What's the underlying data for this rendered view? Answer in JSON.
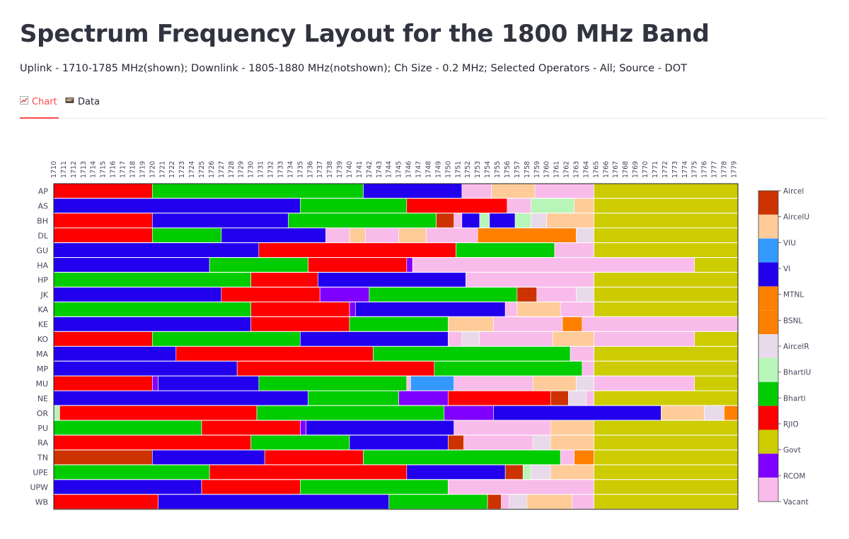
{
  "page": {
    "title": "Spectrum Frequency Layout for the 1800 MHz Band",
    "subtitle": "Uplink - 1710-1785 MHz(shown); Downlink - 1805-1880 MHz(notshown); Ch Size - 0.2 MHz; Selected Operators - All; Source - DOT"
  },
  "tabs": [
    {
      "label": "Chart",
      "icon": "chart-icon",
      "active": true
    },
    {
      "label": "Data",
      "icon": "card-index-icon",
      "active": false
    }
  ],
  "chart_data": {
    "type": "heatmap",
    "title": "",
    "x_axis": {
      "start": 1710,
      "end": 1779,
      "step": 1,
      "cell_mhz": 0.2,
      "range_mhz": [
        1710,
        1779.4
      ],
      "position": "top"
    },
    "y_labels": [
      "AP",
      "AS",
      "BH",
      "DL",
      "GU",
      "HA",
      "HP",
      "JK",
      "KA",
      "KE",
      "KO",
      "MA",
      "MP",
      "MU",
      "NE",
      "OR",
      "PU",
      "RA",
      "TN",
      "UPE",
      "UPW",
      "WB"
    ],
    "legend": {
      "placement": "right",
      "entries": [
        "Aircel",
        "AircelU",
        "VIU",
        "VI",
        "MTNL",
        "BSNL",
        "AircelR",
        "BhartiU",
        "Bharti",
        "RJIO",
        "Govt",
        "RCOM",
        "Vacant"
      ],
      "colors": {
        "Aircel": "#cc3300",
        "AircelU": "#ffcc99",
        "VIU": "#3399ff",
        "VI": "#2200ee",
        "MTNL": "#ff8000",
        "BSNL": "#ff8000",
        "AircelR": "#e8daea",
        "BhartiU": "#b8f5b8",
        "Bharti": "#00cc00",
        "RJIO": "#ff0000",
        "Govt": "#cccc00",
        "RCOM": "#8000ff",
        "Vacant": "#f9bbea"
      }
    },
    "rows": [
      {
        "label": "AP",
        "segments": [
          [
            "RJIO",
            1710,
            1720
          ],
          [
            "Bharti",
            1720,
            1741.4
          ],
          [
            "VI",
            1741.4,
            1751.4
          ],
          [
            "Vacant",
            1751.4,
            1754.4
          ],
          [
            "AircelU",
            1754.4,
            1758.8
          ],
          [
            "Vacant",
            1758.8,
            1764.8
          ],
          [
            "Govt",
            1764.8,
            1779.4
          ]
        ]
      },
      {
        "label": "AS",
        "segments": [
          [
            "VI",
            1710,
            1735
          ],
          [
            "Bharti",
            1735,
            1745.8
          ],
          [
            "RJIO",
            1745.8,
            1756
          ],
          [
            "Vacant",
            1756,
            1758.4
          ],
          [
            "BhartiU",
            1758.4,
            1762.8
          ],
          [
            "AircelU",
            1762.8,
            1764.8
          ],
          [
            "Govt",
            1764.8,
            1779.4
          ]
        ]
      },
      {
        "label": "BH",
        "segments": [
          [
            "RJIO",
            1710,
            1720
          ],
          [
            "VI",
            1720,
            1733.8
          ],
          [
            "Bharti",
            1733.8,
            1748.8
          ],
          [
            "Aircel",
            1748.8,
            1750.6
          ],
          [
            "Vacant",
            1750.6,
            1751.4
          ],
          [
            "VI",
            1751.4,
            1753.2
          ],
          [
            "BhartiU",
            1753.2,
            1754.2
          ],
          [
            "VI",
            1754.2,
            1756.8
          ],
          [
            "BhartiU",
            1756.8,
            1758.4
          ],
          [
            "AircelR",
            1758.4,
            1760
          ],
          [
            "AircelU",
            1760,
            1764.8
          ],
          [
            "Govt",
            1764.8,
            1779.4
          ]
        ]
      },
      {
        "label": "DL",
        "segments": [
          [
            "RJIO",
            1710,
            1720
          ],
          [
            "Bharti",
            1720,
            1727
          ],
          [
            "VI",
            1727,
            1737.6
          ],
          [
            "Vacant",
            1737.6,
            1740
          ],
          [
            "AircelU",
            1740,
            1741.6
          ],
          [
            "Vacant",
            1741.6,
            1745
          ],
          [
            "AircelU",
            1745,
            1747.8
          ],
          [
            "Vacant",
            1747.8,
            1753
          ],
          [
            "MTNL",
            1753,
            1763
          ],
          [
            "AircelR",
            1763,
            1764.8
          ],
          [
            "Govt",
            1764.8,
            1779.4
          ]
        ]
      },
      {
        "label": "GU",
        "segments": [
          [
            "VI",
            1710,
            1730.8
          ],
          [
            "RJIO",
            1730.8,
            1750.8
          ],
          [
            "Bharti",
            1750.8,
            1760.8
          ],
          [
            "Vacant",
            1760.8,
            1764.8
          ],
          [
            "Govt",
            1764.8,
            1779.4
          ]
        ]
      },
      {
        "label": "HA",
        "segments": [
          [
            "VI",
            1710,
            1725.8
          ],
          [
            "Bharti",
            1725.8,
            1735.8
          ],
          [
            "RJIO",
            1735.8,
            1745.8
          ],
          [
            "RCOM",
            1745.8,
            1746.4
          ],
          [
            "Vacant",
            1746.4,
            1775
          ],
          [
            "Govt",
            1775,
            1779.4
          ]
        ]
      },
      {
        "label": "HP",
        "segments": [
          [
            "Bharti",
            1710,
            1730
          ],
          [
            "RJIO",
            1730,
            1736.8
          ],
          [
            "VI",
            1736.8,
            1751.8
          ],
          [
            "Vacant",
            1751.8,
            1764.8
          ],
          [
            "Govt",
            1764.8,
            1779.4
          ]
        ]
      },
      {
        "label": "JK",
        "segments": [
          [
            "VI",
            1710,
            1727
          ],
          [
            "RJIO",
            1727,
            1737
          ],
          [
            "RCOM",
            1737,
            1742
          ],
          [
            "Bharti",
            1742,
            1757
          ],
          [
            "Aircel",
            1757,
            1759
          ],
          [
            "Vacant",
            1759,
            1763
          ],
          [
            "AircelR",
            1763,
            1764.8
          ],
          [
            "Govt",
            1764.8,
            1779.4
          ]
        ]
      },
      {
        "label": "KA",
        "segments": [
          [
            "Bharti",
            1710,
            1730
          ],
          [
            "RJIO",
            1730,
            1740
          ],
          [
            "RCOM",
            1740,
            1740.6
          ],
          [
            "VI",
            1740.6,
            1755.8
          ],
          [
            "Vacant",
            1755.8,
            1757
          ],
          [
            "AircelU",
            1757,
            1761.4
          ],
          [
            "Vacant",
            1761.4,
            1764.8
          ],
          [
            "Govt",
            1764.8,
            1779.4
          ]
        ]
      },
      {
        "label": "KE",
        "segments": [
          [
            "VI",
            1710,
            1730
          ],
          [
            "RJIO",
            1730,
            1740
          ],
          [
            "Bharti",
            1740,
            1750
          ],
          [
            "AircelU",
            1750,
            1754.6
          ],
          [
            "Vacant",
            1754.6,
            1761.6
          ],
          [
            "BSNL",
            1761.6,
            1763.6
          ],
          [
            "Vacant",
            1763.6,
            1779.4
          ]
        ]
      },
      {
        "label": "KO",
        "segments": [
          [
            "RJIO",
            1710,
            1720
          ],
          [
            "Bharti",
            1720,
            1735
          ],
          [
            "VI",
            1735,
            1750
          ],
          [
            "Vacant",
            1750,
            1751.4
          ],
          [
            "AircelR",
            1751.4,
            1753.2
          ],
          [
            "Vacant",
            1753.2,
            1760.6
          ],
          [
            "AircelU",
            1760.6,
            1764.8
          ],
          [
            "Vacant",
            1764.8,
            1775
          ],
          [
            "Govt",
            1775,
            1779.4
          ]
        ]
      },
      {
        "label": "MA",
        "segments": [
          [
            "VI",
            1710,
            1722.4
          ],
          [
            "RJIO",
            1722.4,
            1742.4
          ],
          [
            "Bharti",
            1742.4,
            1762.4
          ],
          [
            "Vacant",
            1762.4,
            1764.8
          ],
          [
            "Govt",
            1764.8,
            1779.4
          ]
        ]
      },
      {
        "label": "MP",
        "segments": [
          [
            "VI",
            1710,
            1728.6
          ],
          [
            "RJIO",
            1728.6,
            1748.6
          ],
          [
            "Bharti",
            1748.6,
            1763.6
          ],
          [
            "Vacant",
            1763.6,
            1764.8
          ],
          [
            "Govt",
            1764.8,
            1779.4
          ]
        ]
      },
      {
        "label": "MU",
        "segments": [
          [
            "RJIO",
            1710,
            1720
          ],
          [
            "RCOM",
            1720,
            1720.6
          ],
          [
            "VI",
            1720.6,
            1730.8
          ],
          [
            "Bharti",
            1730.8,
            1745.8
          ],
          [
            "Vacant",
            1745.8,
            1746.2
          ],
          [
            "VIU",
            1746.2,
            1750.6
          ],
          [
            "Vacant",
            1750.6,
            1758.6
          ],
          [
            "AircelU",
            1758.6,
            1763
          ],
          [
            "AircelR",
            1763,
            1764.8
          ],
          [
            "Vacant",
            1764.8,
            1775
          ],
          [
            "Govt",
            1775,
            1779.4
          ]
        ]
      },
      {
        "label": "NE",
        "segments": [
          [
            "VI",
            1710,
            1735.8
          ],
          [
            "Bharti",
            1735.8,
            1745
          ],
          [
            "RCOM",
            1745,
            1750
          ],
          [
            "RJIO",
            1750,
            1760.4
          ],
          [
            "Aircel",
            1760.4,
            1762.2
          ],
          [
            "AircelR",
            1762.2,
            1764
          ],
          [
            "Vacant",
            1764,
            1764.8
          ],
          [
            "Govt",
            1764.8,
            1779.4
          ]
        ]
      },
      {
        "label": "OR",
        "segments": [
          [
            "BhartiU",
            1710,
            1710.6
          ],
          [
            "RJIO",
            1710.6,
            1730.6
          ],
          [
            "Bharti",
            1730.6,
            1749.6
          ],
          [
            "RCOM",
            1749.6,
            1754.6
          ],
          [
            "VI",
            1754.6,
            1771.6
          ],
          [
            "AircelU",
            1771.6,
            1776
          ],
          [
            "AircelR",
            1776,
            1778
          ],
          [
            "BSNL",
            1778,
            1779.4
          ]
        ]
      },
      {
        "label": "PU",
        "segments": [
          [
            "Bharti",
            1710,
            1725
          ],
          [
            "RJIO",
            1725,
            1735
          ],
          [
            "RCOM",
            1735,
            1735.6
          ],
          [
            "VI",
            1735.6,
            1750.6
          ],
          [
            "Vacant",
            1750.6,
            1760.4
          ],
          [
            "AircelU",
            1760.4,
            1764.8
          ],
          [
            "Govt",
            1764.8,
            1779.4
          ]
        ]
      },
      {
        "label": "RA",
        "segments": [
          [
            "RJIO",
            1710,
            1730
          ],
          [
            "Bharti",
            1730,
            1740
          ],
          [
            "VI",
            1740,
            1750
          ],
          [
            "Aircel",
            1750,
            1751.6
          ],
          [
            "Vacant",
            1751.6,
            1758.6
          ],
          [
            "AircelR",
            1758.6,
            1760.4
          ],
          [
            "AircelU",
            1760.4,
            1764.8
          ],
          [
            "Govt",
            1764.8,
            1779.4
          ]
        ]
      },
      {
        "label": "TN",
        "segments": [
          [
            "Aircel",
            1710,
            1720
          ],
          [
            "VI",
            1720,
            1731.4
          ],
          [
            "RJIO",
            1731.4,
            1741.4
          ],
          [
            "Bharti",
            1741.4,
            1761.4
          ],
          [
            "Vacant",
            1761.4,
            1762.8
          ],
          [
            "BSNL",
            1762.8,
            1764.8
          ],
          [
            "Govt",
            1764.8,
            1779.4
          ]
        ]
      },
      {
        "label": "UPE",
        "segments": [
          [
            "Bharti",
            1710,
            1725.8
          ],
          [
            "RJIO",
            1725.8,
            1745.8
          ],
          [
            "VI",
            1745.8,
            1755.8
          ],
          [
            "Aircel",
            1755.8,
            1757.6
          ],
          [
            "BhartiU",
            1757.6,
            1758.4
          ],
          [
            "AircelR",
            1758.4,
            1760.4
          ],
          [
            "AircelU",
            1760.4,
            1764.8
          ],
          [
            "Govt",
            1764.8,
            1779.4
          ]
        ]
      },
      {
        "label": "UPW",
        "segments": [
          [
            "VI",
            1710,
            1725
          ],
          [
            "RJIO",
            1725,
            1735
          ],
          [
            "Bharti",
            1735,
            1750
          ],
          [
            "Vacant",
            1750,
            1764.8
          ],
          [
            "Govt",
            1764.8,
            1779.4
          ]
        ]
      },
      {
        "label": "WB",
        "segments": [
          [
            "RJIO",
            1710,
            1720.6
          ],
          [
            "VI",
            1720.6,
            1744
          ],
          [
            "Bharti",
            1744,
            1754
          ],
          [
            "Aircel",
            1754,
            1755.4
          ],
          [
            "Vacant",
            1755.4,
            1756.2
          ],
          [
            "AircelR",
            1756.2,
            1758
          ],
          [
            "AircelU",
            1758,
            1762.6
          ],
          [
            "Vacant",
            1762.6,
            1764.8
          ],
          [
            "Govt",
            1764.8,
            1779.4
          ]
        ]
      }
    ]
  }
}
